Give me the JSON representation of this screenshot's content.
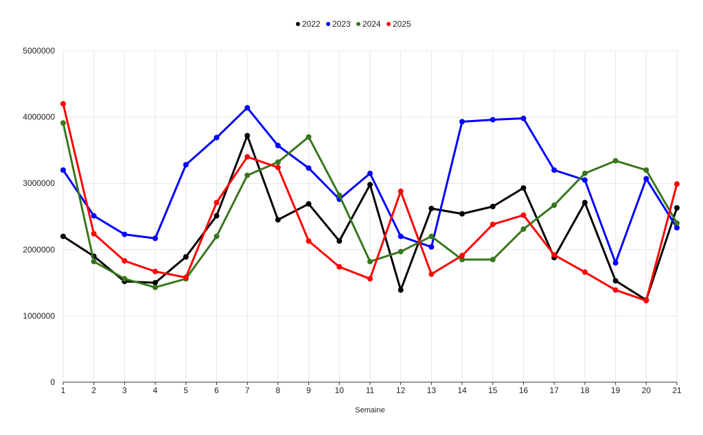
{
  "chart_data": {
    "type": "line",
    "title": "",
    "xlabel": "Semaine",
    "ylabel": "",
    "categories": [
      "1",
      "2",
      "3",
      "4",
      "5",
      "6",
      "7",
      "8",
      "9",
      "10",
      "11",
      "12",
      "13",
      "14",
      "15",
      "16",
      "17",
      "18",
      "19",
      "20",
      "21"
    ],
    "yticks": [
      "0",
      "1000000",
      "2000000",
      "3000000",
      "4000000",
      "5000000"
    ],
    "ylim": [
      0,
      5000000
    ],
    "grid": true,
    "legend_position": "top-center",
    "series": [
      {
        "name": "2022",
        "color": "#000000",
        "values": [
          2200000,
          1900000,
          1520000,
          1500000,
          1890000,
          2510000,
          3720000,
          2450000,
          2690000,
          2130000,
          2980000,
          1390000,
          2620000,
          2540000,
          2650000,
          2930000,
          1880000,
          2710000,
          1530000,
          1240000,
          2630000
        ]
      },
      {
        "name": "2023",
        "color": "#0000ff",
        "values": [
          3200000,
          2510000,
          2230000,
          2170000,
          3280000,
          3690000,
          4140000,
          3570000,
          3230000,
          2760000,
          3150000,
          2200000,
          2040000,
          3930000,
          3960000,
          3980000,
          3200000,
          3050000,
          1800000,
          3070000,
          2330000
        ]
      },
      {
        "name": "2024",
        "color": "#38761d",
        "values": [
          3910000,
          1820000,
          1560000,
          1430000,
          1560000,
          2200000,
          3120000,
          3320000,
          3700000,
          2820000,
          1820000,
          1970000,
          2200000,
          1850000,
          1850000,
          2310000,
          2670000,
          3150000,
          3340000,
          3200000,
          2400000
        ]
      },
      {
        "name": "2025",
        "color": "#ff0000",
        "values": [
          4200000,
          2240000,
          1830000,
          1670000,
          1580000,
          2710000,
          3400000,
          3240000,
          2130000,
          1740000,
          1560000,
          2880000,
          1630000,
          1910000,
          2380000,
          2520000,
          1920000,
          1660000,
          1390000,
          1230000,
          2990000
        ]
      }
    ]
  }
}
